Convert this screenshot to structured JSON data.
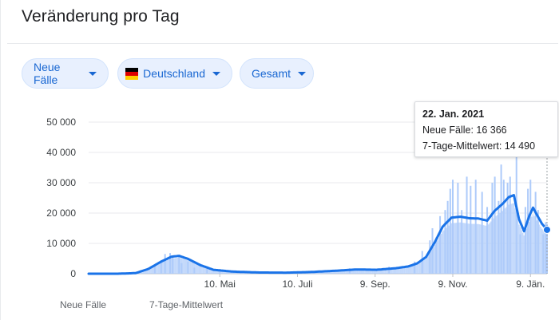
{
  "header": {
    "title": "Veränderung pro Tag"
  },
  "filters": {
    "metric": "Neue Fälle",
    "region": "Deutschland",
    "period": "Gesamt"
  },
  "colors": {
    "bar": "#aecbfa",
    "line": "#1a73e8",
    "chip_bg": "#e8f0fe",
    "chip_text": "#1967d2",
    "flag": [
      "#000000",
      "#dd0000",
      "#ffce00"
    ]
  },
  "icons": {
    "dropdown": "caret-down-icon",
    "flag": "germany-flag-icon"
  },
  "tooltip": {
    "date": "22. Jan. 2021",
    "cases_label": "Neue Fälle: 16 366",
    "avg_label": "7-Tage-Mittelwert: 14 490"
  },
  "legend": {
    "bars": "Neue Fälle",
    "line": "7-Tage-Mittelwert"
  },
  "chart_data": {
    "type": "bar",
    "x_type": "date",
    "xlim": [
      "2020-01-28",
      "2021-01-22"
    ],
    "ylim": [
      0,
      50000
    ],
    "y_ticks": [
      0,
      10000,
      20000,
      30000,
      40000,
      50000
    ],
    "y_tick_labels": [
      "0",
      "10 000",
      "20 000",
      "30 000",
      "40 000",
      "50 000"
    ],
    "x_ticks": [
      "2020-05-10",
      "2020-07-10",
      "2020-09-09",
      "2020-11-09",
      "2021-01-09"
    ],
    "x_tick_labels": [
      "10. Mai",
      "10. Juli",
      "9. Sep.",
      "9. Nov.",
      "9. Jän."
    ],
    "grid": true,
    "legend_position": "bottom-left",
    "series": [
      {
        "name": "7-Tage-Mittelwert",
        "type": "line",
        "points": [
          [
            "2020-01-28",
            0
          ],
          [
            "2020-02-20",
            0
          ],
          [
            "2020-03-05",
            200
          ],
          [
            "2020-03-15",
            1600
          ],
          [
            "2020-03-25",
            4000
          ],
          [
            "2020-04-02",
            5600
          ],
          [
            "2020-04-08",
            5900
          ],
          [
            "2020-04-15",
            4900
          ],
          [
            "2020-04-25",
            2800
          ],
          [
            "2020-05-05",
            1300
          ],
          [
            "2020-05-20",
            700
          ],
          [
            "2020-06-10",
            400
          ],
          [
            "2020-07-01",
            350
          ],
          [
            "2020-07-20",
            550
          ],
          [
            "2020-08-10",
            1000
          ],
          [
            "2020-08-25",
            1400
          ],
          [
            "2020-09-10",
            1300
          ],
          [
            "2020-09-25",
            1800
          ],
          [
            "2020-10-05",
            2400
          ],
          [
            "2020-10-12",
            3400
          ],
          [
            "2020-10-19",
            5500
          ],
          [
            "2020-10-26",
            10500
          ],
          [
            "2020-11-01",
            15500
          ],
          [
            "2020-11-08",
            18500
          ],
          [
            "2020-11-15",
            18800
          ],
          [
            "2020-11-22",
            18300
          ],
          [
            "2020-11-29",
            18200
          ],
          [
            "2020-12-06",
            17500
          ],
          [
            "2020-12-12",
            20800
          ],
          [
            "2020-12-18",
            23000
          ],
          [
            "2020-12-23",
            25300
          ],
          [
            "2020-12-27",
            25900
          ],
          [
            "2020-12-31",
            18000
          ],
          [
            "2021-01-04",
            14000
          ],
          [
            "2021-01-08",
            19000
          ],
          [
            "2021-01-11",
            21800
          ],
          [
            "2021-01-14",
            19500
          ],
          [
            "2021-01-18",
            16500
          ],
          [
            "2021-01-22",
            14490
          ]
        ]
      },
      {
        "name": "Neue Fälle",
        "type": "bar",
        "points": [
          [
            "2020-03-20",
            3000
          ],
          [
            "2020-03-25",
            4500
          ],
          [
            "2020-03-28",
            6500
          ],
          [
            "2020-04-01",
            6800
          ],
          [
            "2020-04-03",
            5800
          ],
          [
            "2020-04-08",
            5500
          ],
          [
            "2020-04-10",
            3500
          ],
          [
            "2020-04-15",
            4000
          ],
          [
            "2020-04-20",
            2000
          ],
          [
            "2020-04-30",
            1600
          ],
          [
            "2020-05-10",
            900
          ],
          [
            "2020-06-20",
            700
          ],
          [
            "2020-08-20",
            1800
          ],
          [
            "2020-09-20",
            2300
          ],
          [
            "2020-10-10",
            4000
          ],
          [
            "2020-10-16",
            7500
          ],
          [
            "2020-10-22",
            11000
          ],
          [
            "2020-10-24",
            15000
          ],
          [
            "2020-10-27",
            12000
          ],
          [
            "2020-10-30",
            19000
          ],
          [
            "2020-11-03",
            21000
          ],
          [
            "2020-11-05",
            24000
          ],
          [
            "2020-11-07",
            28000
          ],
          [
            "2020-11-09",
            31000
          ],
          [
            "2020-11-13",
            30000
          ],
          [
            "2020-11-16",
            21000
          ],
          [
            "2020-11-20",
            32000
          ],
          [
            "2020-11-23",
            29000
          ],
          [
            "2020-11-27",
            31000
          ],
          [
            "2020-12-02",
            27000
          ],
          [
            "2020-12-06",
            22000
          ],
          [
            "2020-12-10",
            30000
          ],
          [
            "2020-12-12",
            32000
          ],
          [
            "2020-12-15",
            24000
          ],
          [
            "2020-12-17",
            36000
          ],
          [
            "2020-12-19",
            31000
          ],
          [
            "2020-12-22",
            30000
          ],
          [
            "2020-12-24",
            32000
          ],
          [
            "2020-12-29",
            39000
          ],
          [
            "2021-01-01",
            13000
          ],
          [
            "2021-01-05",
            22000
          ],
          [
            "2021-01-07",
            28000
          ],
          [
            "2021-01-09",
            31000
          ],
          [
            "2021-01-13",
            27000
          ],
          [
            "2021-01-15",
            21000
          ],
          [
            "2021-01-19",
            13000
          ],
          [
            "2021-01-21",
            17000
          ],
          [
            "2021-01-22",
            16366
          ]
        ]
      }
    ]
  }
}
